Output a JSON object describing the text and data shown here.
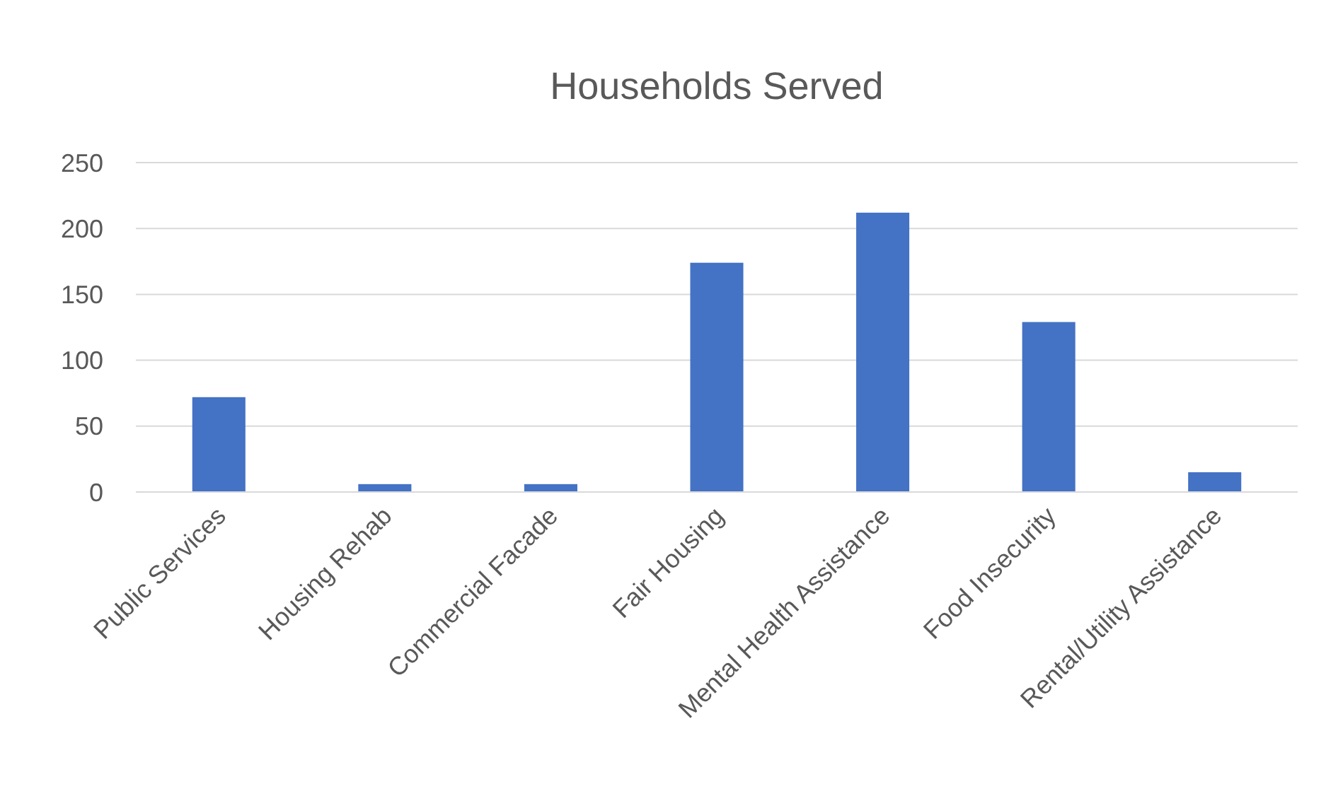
{
  "chart_data": {
    "type": "bar",
    "title": "Households Served",
    "categories": [
      "Public Services",
      "Housing Rehab",
      "Commercial Facade",
      "Fair Housing",
      "Mental Health Assistance",
      "Food Insecurity",
      "Rental/Utility Assistance"
    ],
    "values": [
      72,
      6,
      6,
      174,
      212,
      129,
      15
    ],
    "color": "#4472c4",
    "ylim": [
      0,
      250
    ],
    "yticks": [
      0,
      50,
      100,
      150,
      200,
      250
    ],
    "grid": "y"
  }
}
